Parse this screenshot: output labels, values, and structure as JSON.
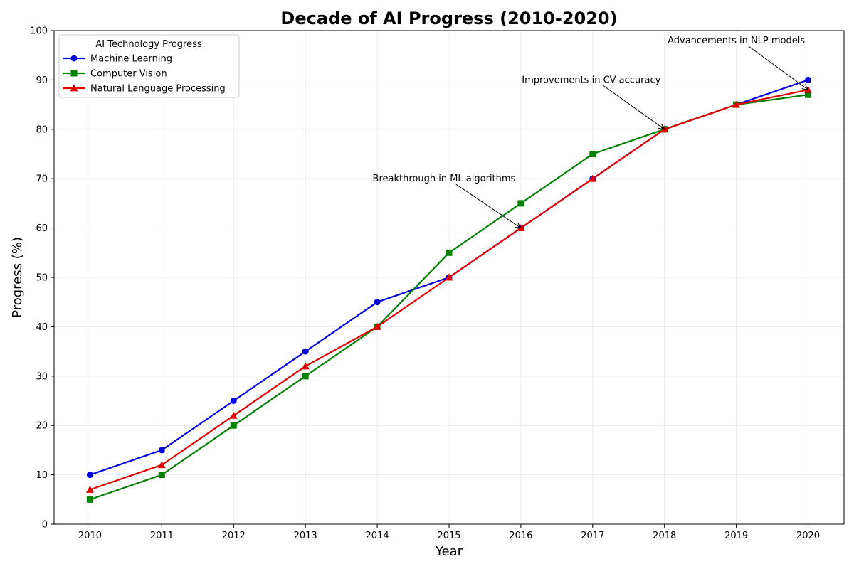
{
  "chart_data": {
    "type": "line",
    "title": "Decade of AI Progress (2010-2020)",
    "xlabel": "Year",
    "ylabel": "Progress (%)",
    "x": [
      2010,
      2011,
      2012,
      2013,
      2014,
      2015,
      2016,
      2017,
      2018,
      2019,
      2020
    ],
    "x_tick_labels": [
      "2010",
      "2011",
      "2012",
      "2013",
      "2014",
      "2015",
      "2016",
      "2017",
      "2018",
      "2019",
      "2020"
    ],
    "ylim": [
      0,
      100
    ],
    "y_ticks": [
      0,
      10,
      20,
      30,
      40,
      50,
      60,
      70,
      80,
      90,
      100
    ],
    "y_tick_labels": [
      "0",
      "10",
      "20",
      "30",
      "40",
      "50",
      "60",
      "70",
      "80",
      "90",
      "100"
    ],
    "grid": true,
    "legend": {
      "title": "AI Technology Progress",
      "placement": "top-left"
    },
    "series": [
      {
        "name": "Machine Learning",
        "color": "#0000e0",
        "marker": "circle",
        "values": [
          10,
          15,
          25,
          35,
          45,
          50,
          60,
          70,
          80,
          85,
          90
        ]
      },
      {
        "name": "Computer Vision",
        "color": "#008000",
        "marker": "square",
        "values": [
          5,
          10,
          20,
          30,
          40,
          55,
          65,
          75,
          80,
          85,
          87
        ]
      },
      {
        "name": "Natural Language Processing",
        "color": "#e00000",
        "marker": "triangle",
        "values": [
          7,
          12,
          22,
          32,
          40,
          50,
          60,
          70,
          80,
          85,
          88
        ]
      }
    ],
    "annotations": [
      {
        "text": "Breakthrough in ML algorithms",
        "point": [
          2016,
          60
        ],
        "text_at": [
          2014.93,
          70
        ]
      },
      {
        "text": "Improvements in CV accuracy",
        "point": [
          2018,
          80
        ],
        "text_at": [
          2016.98,
          90
        ]
      },
      {
        "text": "Advancements in NLP models",
        "point": [
          2020,
          88
        ],
        "text_at": [
          2019,
          98
        ]
      }
    ]
  }
}
